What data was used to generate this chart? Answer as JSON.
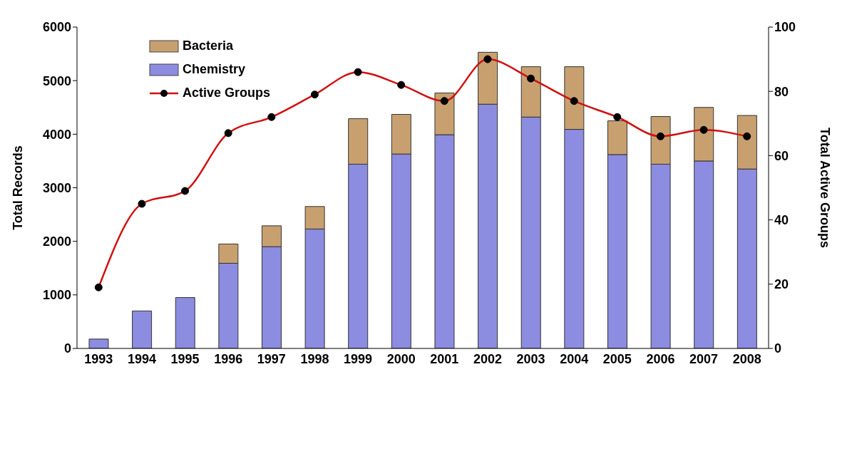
{
  "chart_data": {
    "type": "bar",
    "stacked": true,
    "ylabel": "Total Records",
    "y2label": "Total Active Groups",
    "categories": [
      "1993",
      "1994",
      "1995",
      "1996",
      "1997",
      "1998",
      "1999",
      "2000",
      "2001",
      "2002",
      "2003",
      "2004",
      "2005",
      "2006",
      "2007",
      "2008"
    ],
    "series": [
      {
        "name": "Chemistry",
        "color": "#8c8ce0",
        "values": [
          175,
          700,
          950,
          1590,
          1900,
          2230,
          3440,
          3630,
          3990,
          4560,
          4320,
          4090,
          3620,
          3440,
          3500,
          3350
        ]
      },
      {
        "name": "Bacteria",
        "color": "#c8a070",
        "values": [
          0,
          0,
          0,
          360,
          390,
          420,
          850,
          740,
          780,
          970,
          940,
          1170,
          630,
          890,
          1000,
          1000
        ]
      },
      {
        "name": "Active Groups",
        "type": "line",
        "axis": "y2",
        "color": "#d01010",
        "marker": "circle",
        "values": [
          19,
          45,
          49,
          67,
          72,
          79,
          86,
          82,
          77,
          90,
          84,
          77,
          72,
          66,
          68,
          66
        ]
      }
    ],
    "ylim": [
      0,
      6000
    ],
    "yticks": [
      0,
      1000,
      2000,
      3000,
      4000,
      5000,
      6000
    ],
    "y2lim": [
      0,
      100
    ],
    "y2ticks": [
      0,
      20,
      40,
      60,
      80,
      100
    ],
    "grid": false,
    "legend": "top left"
  }
}
